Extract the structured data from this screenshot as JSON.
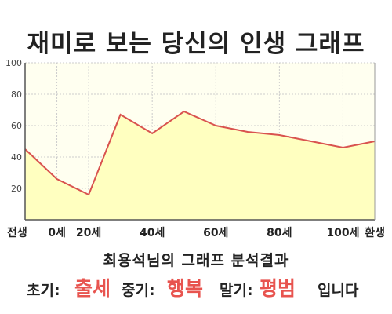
{
  "title": "재미로 보는 당신의 인생 그래프",
  "chart_data": {
    "type": "area",
    "ylim": [
      0,
      100
    ],
    "yticks": [
      20,
      40,
      60,
      80,
      100
    ],
    "xticks": [
      "전생",
      "0세",
      "20세",
      "40세",
      "60세",
      "80세",
      "100세",
      "환생"
    ],
    "points": [
      {
        "x": "전생",
        "y": 45
      },
      {
        "x": "0세",
        "y": 26
      },
      {
        "x": "20세",
        "y": 16
      },
      {
        "x": "30세",
        "y": 67
      },
      {
        "x": "40세",
        "y": 55
      },
      {
        "x": "50세",
        "y": 69
      },
      {
        "x": "60세",
        "y": 60
      },
      {
        "x": "70세",
        "y": 56
      },
      {
        "x": "80세",
        "y": 54
      },
      {
        "x": "90세",
        "y": 50
      },
      {
        "x": "100세",
        "y": 46
      },
      {
        "x": "환생",
        "y": 50
      }
    ],
    "line_color": "#d9534f",
    "fill_color": "#ffffc0",
    "plot_bg": "#fffff0",
    "grid": true
  },
  "result": {
    "heading": "최용석님의 그래프 분석결과",
    "early_label": "초기:",
    "early_value": "출세",
    "middle_label": "중기:",
    "middle_value": "행복",
    "late_label": "말기:",
    "late_value": "평범",
    "ending": "입니다"
  }
}
